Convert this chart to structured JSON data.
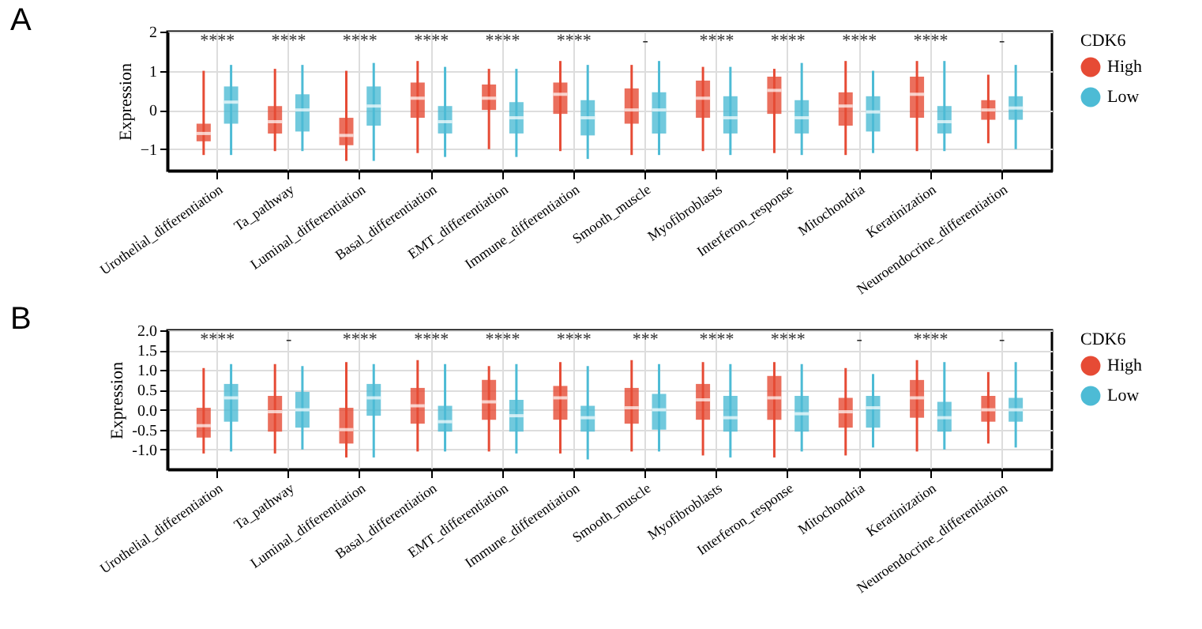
{
  "chart_data": [
    {
      "type": "box",
      "title": "A",
      "ylabel": "Expression",
      "legend_title": "CDK6",
      "legend": "top right",
      "grid": true,
      "categories": [
        "Urothelial_differentiation",
        "Ta_pathway",
        "Luminal_differentiation",
        "Basal_differentiation",
        "EMT_differentiation",
        "Immune_differentiation",
        "Smooth_muscle",
        "Myofibroblasts",
        "Interferon_response",
        "Mitochondria",
        "Keratinization",
        "Neuroendocrine_differentiation"
      ],
      "ylim": [
        -1.55,
        2
      ],
      "yticks": [
        -1,
        0,
        1,
        2
      ],
      "series": [
        {
          "name": "High",
          "color": "#e64b35",
          "boxes": [
            {
              "low": -1.15,
              "q1": -0.8,
              "median": -0.6,
              "q3": -0.35,
              "high": 1.0
            },
            {
              "low": -1.05,
              "q1": -0.6,
              "median": -0.3,
              "q3": 0.1,
              "high": 1.05
            },
            {
              "low": -1.3,
              "q1": -0.9,
              "median": -0.65,
              "q3": -0.2,
              "high": 1.0
            },
            {
              "low": -1.1,
              "q1": -0.2,
              "median": 0.3,
              "q3": 0.7,
              "high": 1.25
            },
            {
              "low": -1.0,
              "q1": 0.0,
              "median": 0.3,
              "q3": 0.65,
              "high": 1.05
            },
            {
              "low": -1.05,
              "q1": -0.1,
              "median": 0.4,
              "q3": 0.7,
              "high": 1.25
            },
            {
              "low": -1.15,
              "q1": -0.35,
              "median": 0.0,
              "q3": 0.55,
              "high": 1.15
            },
            {
              "low": -1.05,
              "q1": -0.2,
              "median": 0.3,
              "q3": 0.75,
              "high": 1.1
            },
            {
              "low": -1.1,
              "q1": -0.1,
              "median": 0.5,
              "q3": 0.85,
              "high": 1.05
            },
            {
              "low": -1.15,
              "q1": -0.4,
              "median": 0.1,
              "q3": 0.45,
              "high": 1.25
            },
            {
              "low": -1.05,
              "q1": -0.2,
              "median": 0.4,
              "q3": 0.85,
              "high": 1.25
            },
            {
              "low": -0.85,
              "q1": -0.25,
              "median": 0.0,
              "q3": 0.25,
              "high": 0.9
            }
          ]
        },
        {
          "name": "Low",
          "color": "#4dbbd5",
          "boxes": [
            {
              "low": -1.15,
              "q1": -0.35,
              "median": 0.2,
              "q3": 0.6,
              "high": 1.15
            },
            {
              "low": -1.05,
              "q1": -0.55,
              "median": 0.0,
              "q3": 0.4,
              "high": 1.15
            },
            {
              "low": -1.3,
              "q1": -0.4,
              "median": 0.1,
              "q3": 0.6,
              "high": 1.2
            },
            {
              "low": -1.2,
              "q1": -0.6,
              "median": -0.3,
              "q3": 0.1,
              "high": 1.1
            },
            {
              "low": -1.2,
              "q1": -0.6,
              "median": -0.2,
              "q3": 0.2,
              "high": 1.05
            },
            {
              "low": -1.25,
              "q1": -0.65,
              "median": -0.2,
              "q3": 0.25,
              "high": 1.15
            },
            {
              "low": -1.15,
              "q1": -0.6,
              "median": 0.0,
              "q3": 0.45,
              "high": 1.25
            },
            {
              "low": -1.15,
              "q1": -0.6,
              "median": -0.2,
              "q3": 0.35,
              "high": 1.1
            },
            {
              "low": -1.15,
              "q1": -0.6,
              "median": -0.2,
              "q3": 0.25,
              "high": 1.2
            },
            {
              "low": -1.1,
              "q1": -0.55,
              "median": -0.05,
              "q3": 0.35,
              "high": 1.0
            },
            {
              "low": -1.05,
              "q1": -0.6,
              "median": -0.3,
              "q3": 0.1,
              "high": 1.25
            },
            {
              "low": -1.0,
              "q1": -0.25,
              "median": 0.05,
              "q3": 0.35,
              "high": 1.15
            }
          ]
        }
      ],
      "annotations": [
        "****",
        "****",
        "****",
        "****",
        "****",
        "****",
        "-",
        "****",
        "****",
        "****",
        "****",
        "-"
      ]
    },
    {
      "type": "box",
      "title": "B",
      "ylabel": "Expression",
      "legend_title": "CDK6",
      "legend": "top right",
      "grid": true,
      "categories": [
        "Urothelial_differentiation",
        "Ta_pathway",
        "Luminal_differentiation",
        "Basal_differentiation",
        "EMT_differentiation",
        "Immune_differentiation",
        "Smooth_muscle",
        "Myofibroblasts",
        "Interferon_response",
        "Mitochondria",
        "Keratinization",
        "Neuroendocrine_differentiation"
      ],
      "ylim": [
        -1.5,
        2.0
      ],
      "yticks": [
        {
          "value": -1,
          "label": "-1.0"
        },
        {
          "value": -0.5,
          "label": "-0.5"
        },
        {
          "value": 0,
          "label": "0.0"
        },
        {
          "value": 0.5,
          "label": "0.5"
        },
        {
          "value": 1,
          "label": "1.0"
        },
        {
          "value": 1.5,
          "label": "1.5"
        },
        {
          "value": 2,
          "label": "2.0"
        }
      ],
      "series": [
        {
          "name": "High",
          "color": "#e64b35",
          "boxes": [
            {
              "low": -1.1,
              "q1": -0.7,
              "median": -0.4,
              "q3": 0.05,
              "high": 1.05
            },
            {
              "low": -1.1,
              "q1": -0.55,
              "median": -0.05,
              "q3": 0.35,
              "high": 1.15
            },
            {
              "low": -1.2,
              "q1": -0.85,
              "median": -0.5,
              "q3": 0.05,
              "high": 1.2
            },
            {
              "low": -1.05,
              "q1": -0.35,
              "median": 0.1,
              "q3": 0.55,
              "high": 1.25
            },
            {
              "low": -1.05,
              "q1": -0.25,
              "median": 0.2,
              "q3": 0.75,
              "high": 1.1
            },
            {
              "low": -1.1,
              "q1": -0.25,
              "median": 0.3,
              "q3": 0.6,
              "high": 1.2
            },
            {
              "low": -1.05,
              "q1": -0.35,
              "median": 0.05,
              "q3": 0.55,
              "high": 1.25
            },
            {
              "low": -1.15,
              "q1": -0.25,
              "median": 0.25,
              "q3": 0.65,
              "high": 1.2
            },
            {
              "low": -1.2,
              "q1": -0.25,
              "median": 0.3,
              "q3": 0.85,
              "high": 1.2
            },
            {
              "low": -1.15,
              "q1": -0.45,
              "median": -0.05,
              "q3": 0.3,
              "high": 1.05
            },
            {
              "low": -1.05,
              "q1": -0.2,
              "median": 0.3,
              "q3": 0.75,
              "high": 1.25
            },
            {
              "low": -0.85,
              "q1": -0.3,
              "median": 0.0,
              "q3": 0.35,
              "high": 0.95
            }
          ]
        },
        {
          "name": "Low",
          "color": "#4dbbd5",
          "boxes": [
            {
              "low": -1.05,
              "q1": -0.3,
              "median": 0.3,
              "q3": 0.65,
              "high": 1.15
            },
            {
              "low": -1.0,
              "q1": -0.45,
              "median": 0.0,
              "q3": 0.45,
              "high": 1.1
            },
            {
              "low": -1.2,
              "q1": -0.15,
              "median": 0.3,
              "q3": 0.65,
              "high": 1.15
            },
            {
              "low": -1.05,
              "q1": -0.55,
              "median": -0.3,
              "q3": 0.1,
              "high": 1.15
            },
            {
              "low": -1.1,
              "q1": -0.55,
              "median": -0.15,
              "q3": 0.25,
              "high": 1.15
            },
            {
              "low": -1.25,
              "q1": -0.55,
              "median": -0.2,
              "q3": 0.1,
              "high": 1.1
            },
            {
              "low": -1.05,
              "q1": -0.5,
              "median": 0.0,
              "q3": 0.4,
              "high": 1.15
            },
            {
              "low": -1.2,
              "q1": -0.55,
              "median": -0.2,
              "q3": 0.35,
              "high": 1.15
            },
            {
              "low": -1.05,
              "q1": -0.55,
              "median": -0.1,
              "q3": 0.35,
              "high": 1.15
            },
            {
              "low": -0.95,
              "q1": -0.45,
              "median": 0.05,
              "q3": 0.35,
              "high": 0.9
            },
            {
              "low": -1.0,
              "q1": -0.55,
              "median": -0.2,
              "q3": 0.2,
              "high": 1.2
            },
            {
              "low": -0.95,
              "q1": -0.3,
              "median": 0.0,
              "q3": 0.3,
              "high": 1.2
            }
          ]
        }
      ],
      "annotations": [
        "****",
        "-",
        "****",
        "****",
        "****",
        "****",
        "***",
        "****",
        "****",
        "-",
        "****",
        "-"
      ]
    }
  ]
}
